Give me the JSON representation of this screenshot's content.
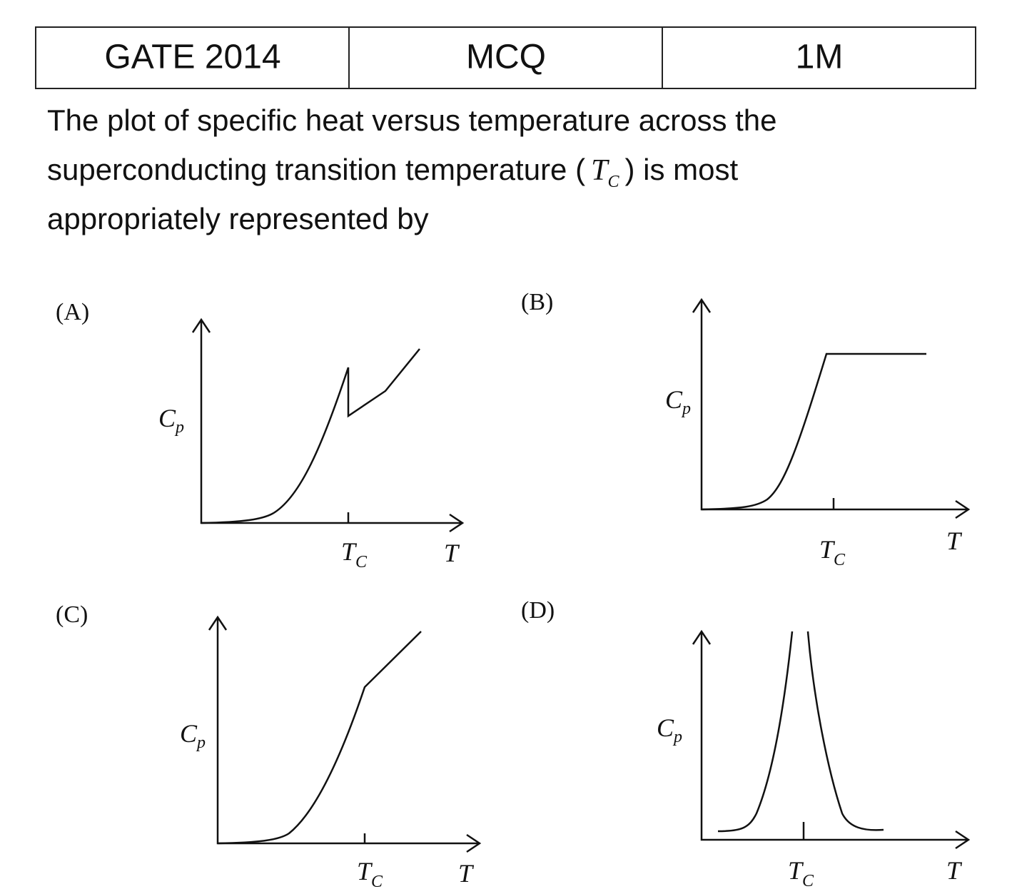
{
  "header": {
    "cells": [
      "GATE 2014",
      "MCQ",
      "1M"
    ]
  },
  "question": {
    "line1": "The plot of specific heat versus temperature across the",
    "line2": {
      "before": "superconducting transition temperature (",
      "symbol": "T",
      "subscript": "C",
      "after": ") is most"
    },
    "line3": "appropriately represented by"
  },
  "options": [
    {
      "label": "(A)",
      "y_axis": "C",
      "y_axis_sub": "p",
      "tick": "T",
      "tick_sub": "C",
      "x_axis": "T"
    },
    {
      "label": "(B)",
      "y_axis": "C",
      "y_axis_sub": "p",
      "tick": "T",
      "tick_sub": "C",
      "x_axis": "T"
    },
    {
      "label": "(C)",
      "y_axis": "C",
      "y_axis_sub": "p",
      "tick": "T",
      "tick_sub": "C",
      "x_axis": "T"
    },
    {
      "label": "(D)",
      "y_axis": "C",
      "y_axis_sub": "p",
      "tick": "T",
      "tick_sub": "C",
      "x_axis": "T"
    }
  ]
}
